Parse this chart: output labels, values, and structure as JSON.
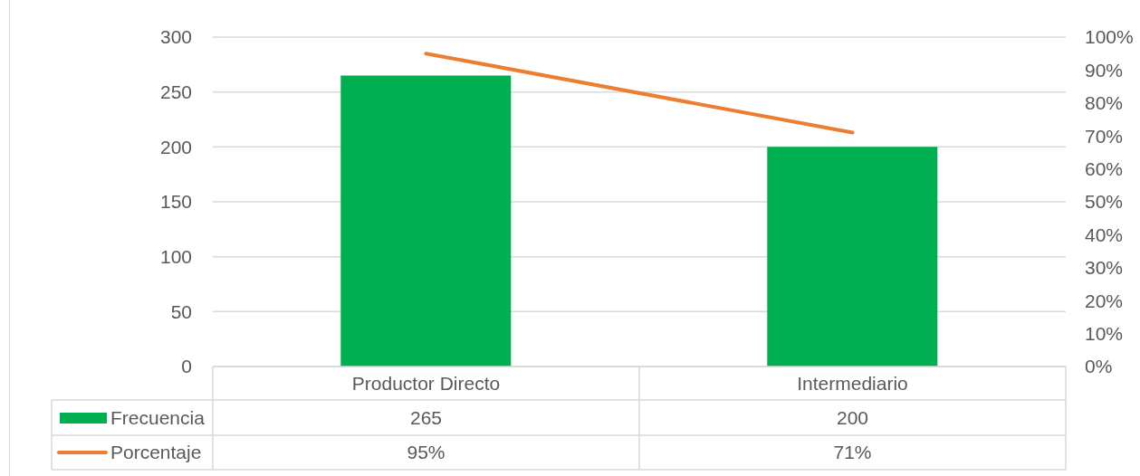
{
  "chart_data": {
    "type": "bar",
    "categories": [
      "Productor Directo",
      "Intermediario"
    ],
    "series": [
      {
        "name": "Frecuencia",
        "color": "#00b050",
        "values": [
          265,
          200
        ],
        "value_labels": [
          "265",
          "200"
        ]
      },
      {
        "name": "Porcentaje",
        "type": "line",
        "axis": "y2",
        "color": "#ed7d31",
        "values": [
          95,
          71
        ],
        "value_labels": [
          "95%",
          "71%"
        ]
      }
    ],
    "ylim": [
      0,
      300
    ],
    "yticks": [
      0,
      50,
      100,
      150,
      200,
      250,
      300
    ],
    "y2lim": [
      0,
      100
    ],
    "y2ticks": [
      {
        "value": 0,
        "label": "0%"
      },
      {
        "value": 10,
        "label": "10%"
      },
      {
        "value": 20,
        "label": "20%"
      },
      {
        "value": 30,
        "label": "30%"
      },
      {
        "value": 40,
        "label": "40%"
      },
      {
        "value": 50,
        "label": "50%"
      },
      {
        "value": 60,
        "label": "60%"
      },
      {
        "value": 70,
        "label": "70%"
      },
      {
        "value": 80,
        "label": "80%"
      },
      {
        "value": 90,
        "label": "90%"
      },
      {
        "value": 100,
        "label": "100%"
      }
    ],
    "grid": "y",
    "legend": "bottom left",
    "marker": "none"
  }
}
